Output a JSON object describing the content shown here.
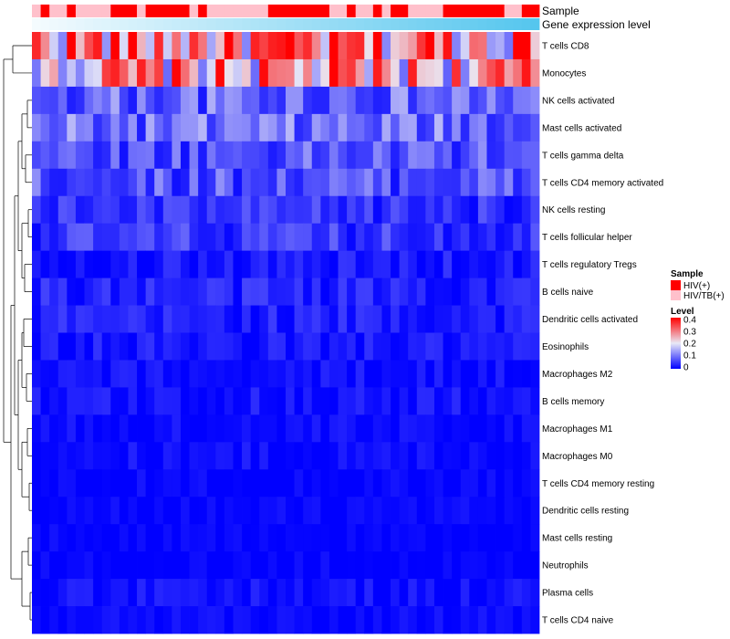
{
  "chart_data": {
    "type": "heatmap",
    "annotation_tracks": [
      {
        "name": "Sample",
        "values": [
          "HIV/TB(+)",
          "HIV(+)",
          "HIV/TB(+)",
          "HIV/TB(+)",
          "HIV(+)",
          "HIV/TB(+)",
          "HIV/TB(+)",
          "HIV/TB(+)",
          "HIV/TB(+)",
          "HIV(+)",
          "HIV(+)",
          "HIV(+)",
          "HIV/TB(+)",
          "HIV(+)",
          "HIV(+)",
          "HIV(+)",
          "HIV(+)",
          "HIV(+)",
          "HIV/TB(+)",
          "HIV(+)",
          "HIV/TB(+)",
          "HIV/TB(+)",
          "HIV/TB(+)",
          "HIV/TB(+)",
          "HIV/TB(+)",
          "HIV/TB(+)",
          "HIV/TB(+)",
          "HIV(+)",
          "HIV(+)",
          "HIV(+)",
          "HIV(+)",
          "HIV(+)",
          "HIV(+)",
          "HIV(+)",
          "HIV/TB(+)",
          "HIV/TB(+)",
          "HIV(+)",
          "HIV/TB(+)",
          "HIV/TB(+)",
          "HIV(+)",
          "HIV/TB(+)",
          "HIV(+)",
          "HIV(+)",
          "HIV/TB(+)",
          "HIV/TB(+)",
          "HIV/TB(+)",
          "HIV/TB(+)",
          "HIV(+)",
          "HIV(+)",
          "HIV(+)",
          "HIV(+)",
          "HIV(+)",
          "HIV(+)",
          "HIV(+)",
          "HIV/TB(+)",
          "HIV/TB(+)",
          "HIV(+)",
          "HIV(+)"
        ]
      },
      {
        "name": "Gene expression level",
        "gradient": [
          "#f4fbfe",
          "#55c6ee"
        ]
      }
    ],
    "rows": [
      "T cells CD8",
      "Monocytes",
      "NK cells activated",
      "Mast cells activated",
      "T cells gamma delta",
      "T cells CD4 memory activated",
      "NK cells resting",
      "T cells follicular helper",
      "T cells regulatory  Tregs",
      "B cells naive",
      "Dendritic cells activated",
      "Eosinophils",
      "Macrophages M2",
      "B cells memory",
      "Macrophages M1",
      "Macrophages M0",
      "T cells CD4 memory resting",
      "Dendritic cells resting",
      "Mast cells resting",
      "Neutrophils",
      "Plasma cells",
      "T cells CD4 naive"
    ],
    "n_samples": 58,
    "row_means": [
      0.28,
      0.24,
      0.085,
      0.09,
      0.07,
      0.07,
      0.04,
      0.045,
      0.02,
      0.03,
      0.025,
      0.018,
      0.012,
      0.016,
      0.008,
      0.01,
      0.003,
      0.003,
      0.001,
      0.001,
      0.012,
      0.005
    ],
    "value_range": [
      0,
      0.4
    ],
    "color_scale": {
      "low": "#0000ff",
      "mid": "#e9e9f6",
      "high": "#ff0000",
      "midpoint": 0.2
    },
    "legend": {
      "sample_title": "Sample",
      "sample_levels": [
        {
          "label": "HIV(+)",
          "color": "#ff0000"
        },
        {
          "label": "HIV/TB(+)",
          "color": "#ffc0cb"
        }
      ],
      "level_title": "Level",
      "level_ticks": [
        "0.4",
        "0.3",
        "0.2",
        "0.1",
        "0"
      ]
    },
    "clustering": "rows (hierarchical dendrogram)"
  }
}
